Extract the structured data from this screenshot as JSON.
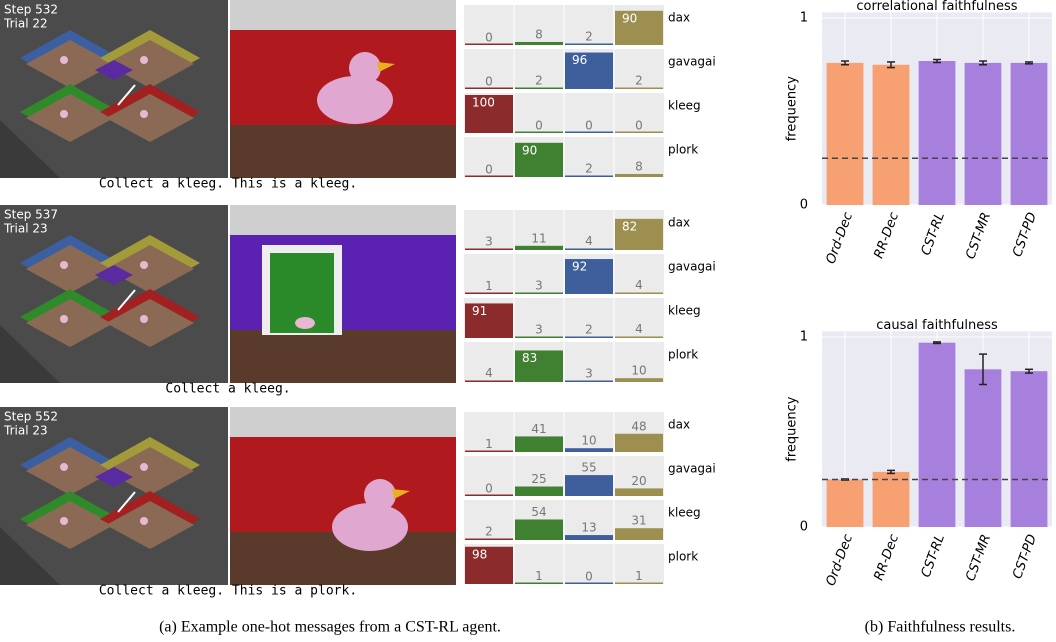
{
  "examples": [
    {
      "step": "Step 532",
      "trial": "Trial 22",
      "caption": "Collect a kleeg. This is a kleeg.",
      "messages": [
        {
          "word": "dax",
          "values": [
            0,
            8,
            2,
            90
          ]
        },
        {
          "word": "gavagai",
          "values": [
            0,
            2,
            96,
            2
          ]
        },
        {
          "word": "kleeg",
          "values": [
            100,
            0,
            0,
            0
          ]
        },
        {
          "word": "plork",
          "values": [
            0,
            90,
            2,
            8
          ]
        }
      ]
    },
    {
      "step": "Step 537",
      "trial": "Trial 23",
      "caption": "Collect a kleeg.",
      "messages": [
        {
          "word": "dax",
          "values": [
            3,
            11,
            4,
            82
          ]
        },
        {
          "word": "gavagai",
          "values": [
            1,
            3,
            92,
            4
          ]
        },
        {
          "word": "kleeg",
          "values": [
            91,
            3,
            2,
            4
          ]
        },
        {
          "word": "plork",
          "values": [
            4,
            83,
            3,
            10
          ]
        }
      ]
    },
    {
      "step": "Step 552",
      "trial": "Trial 23",
      "caption": "Collect a kleeg. This is a plork.",
      "messages": [
        {
          "word": "dax",
          "values": [
            1,
            41,
            10,
            48
          ]
        },
        {
          "word": "gavagai",
          "values": [
            0,
            25,
            55,
            20
          ]
        },
        {
          "word": "kleeg",
          "values": [
            2,
            54,
            13,
            31
          ]
        },
        {
          "word": "plork",
          "values": [
            98,
            1,
            0,
            1
          ]
        }
      ]
    }
  ],
  "message_colors": [
    "#8c2b2b",
    "#3f8031",
    "#3e5f9c",
    "#9c8f4f"
  ],
  "chart_data": [
    {
      "type": "bar",
      "title": "correlational faithfulness",
      "ylabel": "frequency",
      "categories": [
        "Ord-Dec",
        "RR-Dec",
        "CST-RL",
        "CST-MR",
        "CST-PD"
      ],
      "values": [
        0.76,
        0.75,
        0.77,
        0.76,
        0.76
      ],
      "errors": [
        0.01,
        0.015,
        0.008,
        0.01,
        0.005
      ],
      "colors": [
        "#f7a072",
        "#f7a072",
        "#a77fdd",
        "#a77fdd",
        "#a77fdd"
      ],
      "ylim": [
        0,
        1.03
      ],
      "yticks": [
        0,
        1
      ],
      "hline": 0.25,
      "grid": true
    },
    {
      "type": "bar",
      "title": "causal faithfulness",
      "ylabel": "frequency",
      "categories": [
        "Ord-Dec",
        "RR-Dec",
        "CST-RL",
        "CST-MR",
        "CST-PD"
      ],
      "values": [
        0.25,
        0.29,
        0.97,
        0.83,
        0.82
      ],
      "errors": [
        0.003,
        0.008,
        0.004,
        0.08,
        0.01
      ],
      "colors": [
        "#f7a072",
        "#f7a072",
        "#a77fdd",
        "#a77fdd",
        "#a77fdd"
      ],
      "ylim": [
        0,
        1.03
      ],
      "yticks": [
        0,
        1
      ],
      "hline": 0.25,
      "grid": true
    }
  ],
  "captions": {
    "a": "(a) Example one-hot messages from a CST-RL agent.",
    "b": "(b) Faithfulness results."
  }
}
